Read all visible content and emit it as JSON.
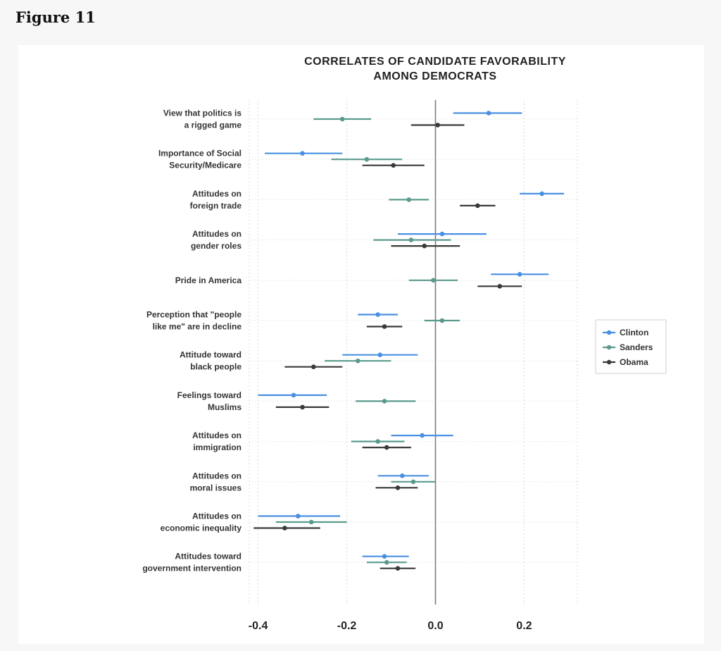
{
  "figure_label": "Figure 11",
  "colors": {
    "Clinton": "#4a90e2",
    "Sanders": "#5a9a8c",
    "Obama": "#3a3a3a",
    "zero_line": "#7a7a7a",
    "grid": "#d8d8d8"
  },
  "chart_data": {
    "type": "scatter",
    "title_lines": [
      "CORRELATES OF CANDIDATE FAVORABILITY",
      "AMONG DEMOCRATS"
    ],
    "xlabel": "",
    "ylabel": "",
    "xlim": [
      -0.42,
      0.32
    ],
    "xticks": [
      -0.4,
      -0.2,
      0.0,
      0.2
    ],
    "xtick_labels": [
      "-0.4",
      "-0.2",
      "0.0",
      "0.2"
    ],
    "grid": true,
    "legend_position": "right",
    "categories": [
      [
        "View that politics is",
        "a rigged game"
      ],
      [
        "Importance of Social",
        "Security/Medicare"
      ],
      [
        "Attitudes on",
        "foreign trade"
      ],
      [
        "Attitudes on",
        "gender roles"
      ],
      [
        "Pride in America"
      ],
      [
        "Perception that \"people",
        "like me\" are in decline"
      ],
      [
        "Attitude toward",
        "black people"
      ],
      [
        "Feelings toward",
        "Muslims"
      ],
      [
        "Attitudes on",
        "immigration"
      ],
      [
        "Attitudes on",
        "moral issues"
      ],
      [
        "Attitudes on",
        "economic inequality"
      ],
      [
        "Attitudes toward",
        "government intervention"
      ]
    ],
    "series": [
      {
        "name": "Clinton",
        "values": [
          0.12,
          -0.3,
          0.24,
          0.015,
          0.19,
          -0.13,
          -0.125,
          -0.32,
          -0.03,
          -0.075,
          -0.31,
          -0.115
        ],
        "lower": [
          0.04,
          -0.385,
          0.19,
          -0.085,
          0.125,
          -0.175,
          -0.21,
          -0.4,
          -0.1,
          -0.13,
          -0.4,
          -0.165
        ],
        "upper": [
          0.195,
          -0.21,
          0.29,
          0.115,
          0.255,
          -0.085,
          -0.04,
          -0.245,
          0.04,
          -0.015,
          -0.215,
          -0.06
        ]
      },
      {
        "name": "Sanders",
        "values": [
          -0.21,
          -0.155,
          -0.06,
          -0.055,
          -0.005,
          0.015,
          -0.175,
          -0.115,
          -0.13,
          -0.05,
          -0.28,
          -0.11
        ],
        "lower": [
          -0.275,
          -0.235,
          -0.105,
          -0.14,
          -0.06,
          -0.025,
          -0.25,
          -0.18,
          -0.19,
          -0.1,
          -0.36,
          -0.155
        ],
        "upper": [
          -0.145,
          -0.075,
          -0.015,
          0.035,
          0.05,
          0.055,
          -0.1,
          -0.045,
          -0.07,
          0.0,
          -0.2,
          -0.065
        ]
      },
      {
        "name": "Obama",
        "values": [
          0.005,
          -0.095,
          0.095,
          -0.025,
          0.145,
          -0.115,
          -0.275,
          -0.3,
          -0.11,
          -0.085,
          -0.34,
          -0.085
        ],
        "lower": [
          -0.055,
          -0.165,
          0.055,
          -0.1,
          0.095,
          -0.155,
          -0.34,
          -0.36,
          -0.165,
          -0.135,
          -0.41,
          -0.125
        ],
        "upper": [
          0.065,
          -0.025,
          0.135,
          0.055,
          0.195,
          -0.075,
          -0.21,
          -0.24,
          -0.055,
          -0.04,
          -0.26,
          -0.045
        ]
      }
    ]
  }
}
